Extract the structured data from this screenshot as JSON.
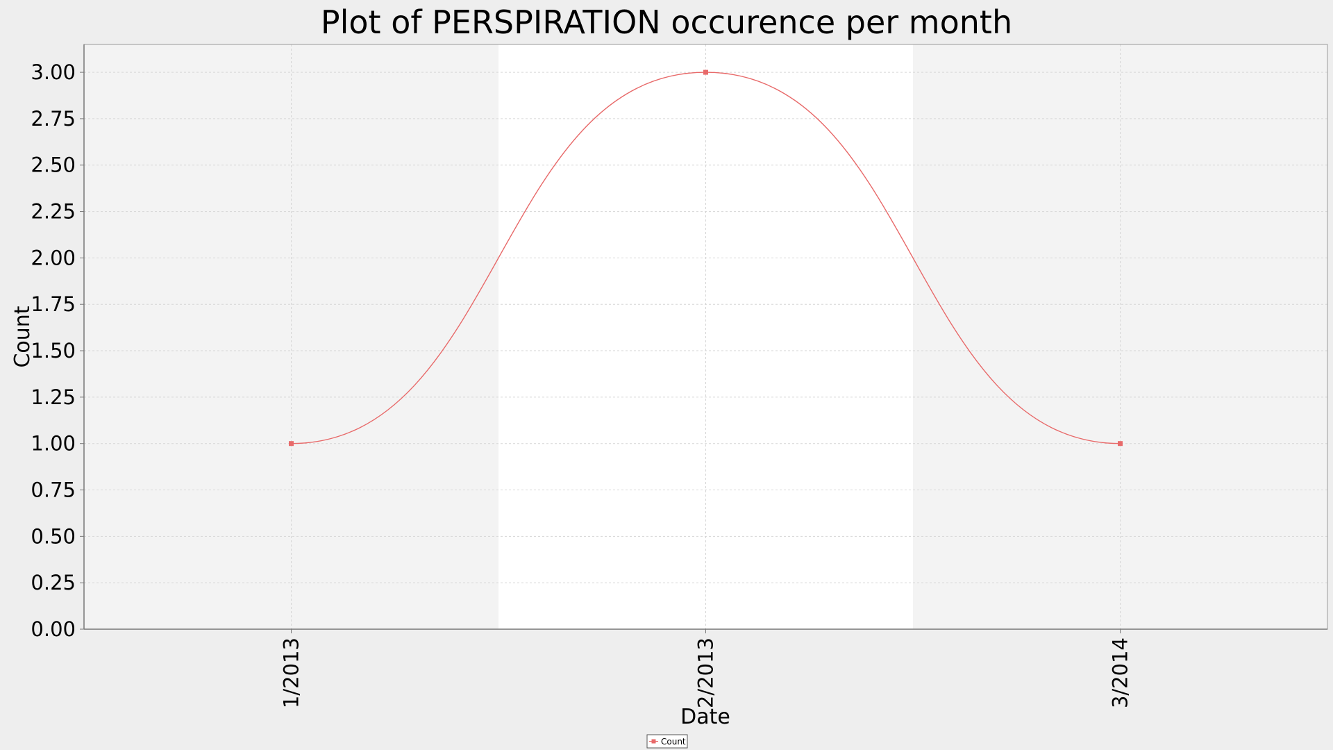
{
  "chart_data": {
    "type": "line",
    "title": "Plot of PERSPIRATION occurence per month",
    "xlabel": "Date",
    "ylabel": "Count",
    "categories": [
      "1/2013",
      "2/2013",
      "3/2014"
    ],
    "series": [
      {
        "name": "Count",
        "values": [
          1.0,
          3.0,
          1.0
        ],
        "color": "#e86a6a"
      }
    ],
    "ylim": [
      0,
      3.15
    ],
    "yticks": [
      "0.00",
      "0.25",
      "0.50",
      "0.75",
      "1.00",
      "1.25",
      "1.50",
      "1.75",
      "2.00",
      "2.25",
      "2.50",
      "2.75",
      "3.00"
    ],
    "line_style": "smooth",
    "grid": true,
    "legend_position": "bottom-center",
    "colors": {
      "page_background": "#eeeeee",
      "plot_band_light": "#f3f3f3",
      "plot_band_white": "#ffffff",
      "axis": "#9a9a9a",
      "grid": "#d6d6d6"
    }
  }
}
